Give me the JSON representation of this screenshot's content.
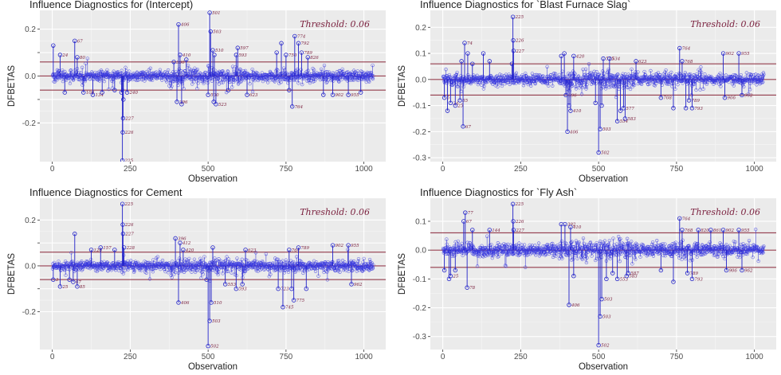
{
  "chart_data": [
    {
      "type": "scatter",
      "title": "Influence Diagnostics for (Intercept)",
      "xlabel": "Observation",
      "ylabel": "DFBETAS",
      "threshold_label": "Threshold: 0.06",
      "threshold": 0.06,
      "xlim": [
        -40,
        1070
      ],
      "ylim": [
        -0.365,
        0.28
      ],
      "xticks": [
        0,
        250,
        500,
        750,
        1000
      ],
      "yticks": [
        -0.2,
        -0.1,
        0.0,
        0.1,
        0.2
      ],
      "ytick_labels": [
        "-0.2",
        "",
        "0.0",
        "",
        "0.2"
      ],
      "points": [
        {
          "x": 3,
          "y": 0.13,
          "label": ""
        },
        {
          "x": 25,
          "y": 0.09,
          "label": "24"
        },
        {
          "x": 40,
          "y": -0.07,
          "label": ""
        },
        {
          "x": 72,
          "y": 0.15,
          "label": "67"
        },
        {
          "x": 80,
          "y": 0.08,
          "label": "80"
        },
        {
          "x": 100,
          "y": -0.07,
          "label": "100"
        },
        {
          "x": 130,
          "y": -0.08,
          "label": "134"
        },
        {
          "x": 160,
          "y": -0.07,
          "label": ""
        },
        {
          "x": 200,
          "y": -0.06,
          "label": ""
        },
        {
          "x": 222,
          "y": -0.07,
          "label": ""
        },
        {
          "x": 225,
          "y": -0.36,
          "label": "225"
        },
        {
          "x": 226,
          "y": -0.24,
          "label": "226"
        },
        {
          "x": 227,
          "y": -0.18,
          "label": "227"
        },
        {
          "x": 228,
          "y": -0.1,
          "label": ""
        },
        {
          "x": 240,
          "y": -0.07,
          "label": "240"
        },
        {
          "x": 390,
          "y": 0.06,
          "label": "390"
        },
        {
          "x": 400,
          "y": -0.11,
          "label": "396"
        },
        {
          "x": 405,
          "y": 0.22,
          "label": "406"
        },
        {
          "x": 410,
          "y": 0.09,
          "label": "410"
        },
        {
          "x": 415,
          "y": -0.12,
          "label": ""
        },
        {
          "x": 430,
          "y": 0.07,
          "label": ""
        },
        {
          "x": 500,
          "y": -0.08,
          "label": "500"
        },
        {
          "x": 505,
          "y": 0.27,
          "label": "501"
        },
        {
          "x": 508,
          "y": 0.19,
          "label": "503"
        },
        {
          "x": 515,
          "y": 0.11,
          "label": "510"
        },
        {
          "x": 518,
          "y": -0.11,
          "label": ""
        },
        {
          "x": 520,
          "y": 0.09,
          "label": ""
        },
        {
          "x": 525,
          "y": -0.12,
          "label": "523"
        },
        {
          "x": 565,
          "y": -0.06,
          "label": ""
        },
        {
          "x": 590,
          "y": 0.09,
          "label": "593"
        },
        {
          "x": 595,
          "y": 0.12,
          "label": "597"
        },
        {
          "x": 625,
          "y": -0.08,
          "label": "623"
        },
        {
          "x": 720,
          "y": 0.1,
          "label": ""
        },
        {
          "x": 735,
          "y": 0.14,
          "label": ""
        },
        {
          "x": 750,
          "y": 0.09,
          "label": "750"
        },
        {
          "x": 760,
          "y": -0.06,
          "label": ""
        },
        {
          "x": 770,
          "y": -0.13,
          "label": "764"
        },
        {
          "x": 778,
          "y": 0.17,
          "label": "774"
        },
        {
          "x": 790,
          "y": 0.14,
          "label": "792"
        },
        {
          "x": 800,
          "y": 0.1,
          "label": "789"
        },
        {
          "x": 820,
          "y": 0.08,
          "label": "826"
        },
        {
          "x": 870,
          "y": -0.08,
          "label": ""
        },
        {
          "x": 900,
          "y": -0.08,
          "label": "902"
        },
        {
          "x": 950,
          "y": -0.08,
          "label": "955"
        },
        {
          "x": 990,
          "y": -0.07,
          "label": ""
        }
      ]
    },
    {
      "type": "scatter",
      "title": "Influence Diagnostics for `Blast Furnace Slag`",
      "xlabel": "Observation",
      "ylabel": "DFBETAS",
      "threshold_label": "Threshold: 0.06",
      "threshold": 0.06,
      "xlim": [
        -40,
        1070
      ],
      "ylim": [
        -0.315,
        0.265
      ],
      "xticks": [
        0,
        250,
        500,
        750,
        1000
      ],
      "yticks": [
        -0.3,
        -0.2,
        -0.1,
        0.0,
        0.1,
        0.2
      ],
      "ytick_labels": [
        "-0.3",
        "-0.2",
        "-0.1",
        "0.0",
        "0.1",
        "0.2"
      ],
      "points": [
        {
          "x": 5,
          "y": -0.07,
          "label": "5"
        },
        {
          "x": 15,
          "y": -0.12,
          "label": ""
        },
        {
          "x": 25,
          "y": -0.09,
          "label": "24"
        },
        {
          "x": 40,
          "y": -0.1,
          "label": "25"
        },
        {
          "x": 55,
          "y": -0.08,
          "label": "55"
        },
        {
          "x": 60,
          "y": 0.07,
          "label": ""
        },
        {
          "x": 65,
          "y": -0.18,
          "label": "67"
        },
        {
          "x": 70,
          "y": 0.14,
          "label": "74"
        },
        {
          "x": 80,
          "y": 0.1,
          "label": ""
        },
        {
          "x": 95,
          "y": 0.06,
          "label": ""
        },
        {
          "x": 130,
          "y": 0.1,
          "label": ""
        },
        {
          "x": 150,
          "y": 0.07,
          "label": ""
        },
        {
          "x": 222,
          "y": 0.06,
          "label": ""
        },
        {
          "x": 225,
          "y": 0.24,
          "label": "225"
        },
        {
          "x": 226,
          "y": 0.15,
          "label": "226"
        },
        {
          "x": 227,
          "y": 0.11,
          "label": "227"
        },
        {
          "x": 380,
          "y": 0.09,
          "label": ""
        },
        {
          "x": 390,
          "y": 0.1,
          "label": ""
        },
        {
          "x": 395,
          "y": -0.06,
          "label": "396"
        },
        {
          "x": 400,
          "y": -0.2,
          "label": "406"
        },
        {
          "x": 405,
          "y": -0.1,
          "label": ""
        },
        {
          "x": 410,
          "y": -0.12,
          "label": "410"
        },
        {
          "x": 420,
          "y": 0.09,
          "label": "420"
        },
        {
          "x": 490,
          "y": -0.09,
          "label": ""
        },
        {
          "x": 500,
          "y": -0.28,
          "label": "502"
        },
        {
          "x": 505,
          "y": -0.19,
          "label": "503"
        },
        {
          "x": 510,
          "y": -0.1,
          "label": ""
        },
        {
          "x": 515,
          "y": 0.08,
          "label": "515"
        },
        {
          "x": 535,
          "y": 0.08,
          "label": "534"
        },
        {
          "x": 560,
          "y": -0.16,
          "label": "554"
        },
        {
          "x": 570,
          "y": -0.12,
          "label": ""
        },
        {
          "x": 580,
          "y": -0.11,
          "label": "577"
        },
        {
          "x": 585,
          "y": -0.15,
          "label": "583"
        },
        {
          "x": 620,
          "y": 0.07,
          "label": "623"
        },
        {
          "x": 700,
          "y": -0.07,
          "label": "708"
        },
        {
          "x": 740,
          "y": -0.11,
          "label": ""
        },
        {
          "x": 760,
          "y": 0.12,
          "label": "764"
        },
        {
          "x": 768,
          "y": 0.07,
          "label": "768"
        },
        {
          "x": 780,
          "y": -0.11,
          "label": ""
        },
        {
          "x": 790,
          "y": -0.08,
          "label": "789"
        },
        {
          "x": 800,
          "y": -0.11,
          "label": "793"
        },
        {
          "x": 900,
          "y": 0.1,
          "label": "902"
        },
        {
          "x": 905,
          "y": -0.07,
          "label": "906"
        },
        {
          "x": 950,
          "y": 0.1,
          "label": "955"
        },
        {
          "x": 960,
          "y": -0.06,
          "label": "962"
        }
      ]
    },
    {
      "type": "scatter",
      "title": "Influence Diagnostics for Cement",
      "xlabel": "Observation",
      "ylabel": "DFBETAS",
      "threshold_label": "Threshold: 0.06",
      "threshold": 0.06,
      "xlim": [
        -40,
        1070
      ],
      "ylim": [
        -0.365,
        0.295
      ],
      "xticks": [
        0,
        250,
        500,
        750,
        1000
      ],
      "yticks": [
        -0.2,
        -0.1,
        0.0,
        0.1,
        0.2
      ],
      "ytick_labels": [
        "-0.2",
        "",
        "0.0",
        "",
        "0.2"
      ],
      "points": [
        {
          "x": 3,
          "y": -0.06,
          "label": "3"
        },
        {
          "x": 25,
          "y": -0.09,
          "label": "25"
        },
        {
          "x": 55,
          "y": -0.06,
          "label": ""
        },
        {
          "x": 67,
          "y": -0.07,
          "label": "67"
        },
        {
          "x": 72,
          "y": 0.14,
          "label": ""
        },
        {
          "x": 80,
          "y": -0.09,
          "label": "85"
        },
        {
          "x": 125,
          "y": 0.07,
          "label": "126"
        },
        {
          "x": 155,
          "y": 0.08,
          "label": "157"
        },
        {
          "x": 200,
          "y": 0.07,
          "label": ""
        },
        {
          "x": 225,
          "y": 0.27,
          "label": "225"
        },
        {
          "x": 226,
          "y": 0.18,
          "label": "226"
        },
        {
          "x": 227,
          "y": 0.14,
          "label": "227"
        },
        {
          "x": 230,
          "y": 0.08,
          "label": "228"
        },
        {
          "x": 395,
          "y": 0.12,
          "label": "396"
        },
        {
          "x": 405,
          "y": -0.16,
          "label": "406"
        },
        {
          "x": 410,
          "y": 0.1,
          "label": "412"
        },
        {
          "x": 420,
          "y": 0.07,
          "label": "420"
        },
        {
          "x": 495,
          "y": -0.06,
          "label": ""
        },
        {
          "x": 500,
          "y": -0.35,
          "label": "502"
        },
        {
          "x": 505,
          "y": -0.24,
          "label": "503"
        },
        {
          "x": 510,
          "y": -0.16,
          "label": "510"
        },
        {
          "x": 515,
          "y": 0.08,
          "label": ""
        },
        {
          "x": 555,
          "y": -0.08,
          "label": "553"
        },
        {
          "x": 590,
          "y": -0.1,
          "label": "593"
        },
        {
          "x": 610,
          "y": -0.08,
          "label": ""
        },
        {
          "x": 620,
          "y": 0.07,
          "label": "623"
        },
        {
          "x": 725,
          "y": -0.1,
          "label": "723"
        },
        {
          "x": 740,
          "y": -0.18,
          "label": "745"
        },
        {
          "x": 760,
          "y": 0.07,
          "label": "764"
        },
        {
          "x": 768,
          "y": -0.1,
          "label": ""
        },
        {
          "x": 775,
          "y": -0.15,
          "label": "775"
        },
        {
          "x": 790,
          "y": 0.08,
          "label": "789"
        },
        {
          "x": 815,
          "y": -0.1,
          "label": ""
        },
        {
          "x": 900,
          "y": 0.09,
          "label": "902"
        },
        {
          "x": 950,
          "y": 0.09,
          "label": "955"
        },
        {
          "x": 960,
          "y": -0.08,
          "label": "962"
        }
      ]
    },
    {
      "type": "scatter",
      "title": "Influence Diagnostics for `Fly Ash`",
      "xlabel": "Observation",
      "ylabel": "DFBETAS",
      "threshold_label": "Threshold: 0.06",
      "threshold": 0.06,
      "xlim": [
        -40,
        1070
      ],
      "ylim": [
        -0.345,
        0.18
      ],
      "xticks": [
        0,
        250,
        500,
        750,
        1000
      ],
      "yticks": [
        -0.3,
        -0.2,
        -0.1,
        0.0,
        0.1
      ],
      "ytick_labels": [
        "-0.3",
        "-0.2",
        "-0.1",
        "0.0",
        "0.1"
      ],
      "points": [
        {
          "x": 5,
          "y": -0.07,
          "label": ""
        },
        {
          "x": 20,
          "y": -0.1,
          "label": ""
        },
        {
          "x": 25,
          "y": -0.09,
          "label": "25"
        },
        {
          "x": 40,
          "y": -0.07,
          "label": ""
        },
        {
          "x": 67,
          "y": 0.1,
          "label": "67"
        },
        {
          "x": 72,
          "y": 0.13,
          "label": "77"
        },
        {
          "x": 78,
          "y": -0.13,
          "label": "78"
        },
        {
          "x": 95,
          "y": 0.07,
          "label": ""
        },
        {
          "x": 150,
          "y": 0.07,
          "label": "144"
        },
        {
          "x": 225,
          "y": 0.16,
          "label": "225"
        },
        {
          "x": 226,
          "y": 0.1,
          "label": "226"
        },
        {
          "x": 227,
          "y": 0.07,
          "label": "227"
        },
        {
          "x": 380,
          "y": 0.09,
          "label": ""
        },
        {
          "x": 392,
          "y": 0.09,
          "label": "392"
        },
        {
          "x": 405,
          "y": -0.19,
          "label": "406"
        },
        {
          "x": 410,
          "y": 0.08,
          "label": "410"
        },
        {
          "x": 420,
          "y": -0.09,
          "label": ""
        },
        {
          "x": 500,
          "y": -0.33,
          "label": "502"
        },
        {
          "x": 505,
          "y": -0.23,
          "label": "503"
        },
        {
          "x": 510,
          "y": -0.17,
          "label": "503"
        },
        {
          "x": 525,
          "y": -0.1,
          "label": ""
        },
        {
          "x": 545,
          "y": -0.08,
          "label": ""
        },
        {
          "x": 560,
          "y": -0.1,
          "label": "553"
        },
        {
          "x": 590,
          "y": -0.09,
          "label": "583"
        },
        {
          "x": 595,
          "y": -0.08,
          "label": "587"
        },
        {
          "x": 700,
          "y": -0.07,
          "label": ""
        },
        {
          "x": 740,
          "y": -0.11,
          "label": ""
        },
        {
          "x": 760,
          "y": 0.11,
          "label": "764"
        },
        {
          "x": 768,
          "y": 0.07,
          "label": "768"
        },
        {
          "x": 785,
          "y": -0.08,
          "label": "789"
        },
        {
          "x": 800,
          "y": -0.1,
          "label": "793"
        },
        {
          "x": 820,
          "y": 0.07,
          "label": "820"
        },
        {
          "x": 860,
          "y": 0.07,
          "label": "861"
        },
        {
          "x": 900,
          "y": 0.07,
          "label": "902"
        },
        {
          "x": 910,
          "y": -0.07,
          "label": "906"
        },
        {
          "x": 950,
          "y": 0.07,
          "label": "955"
        },
        {
          "x": 960,
          "y": -0.07,
          "label": "962"
        }
      ]
    }
  ]
}
